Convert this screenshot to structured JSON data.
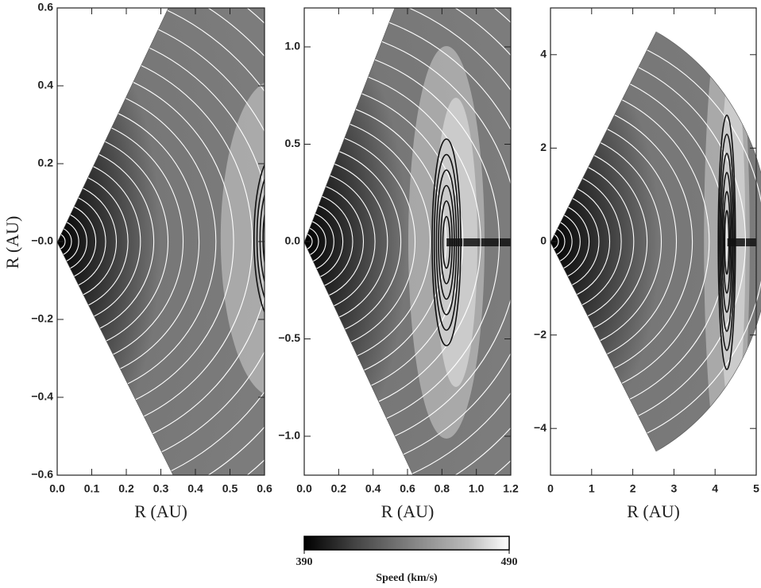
{
  "chart_data": [
    {
      "type": "contour",
      "xlabel": "R (AU)",
      "ylabel": "R (AU)",
      "xlim": [
        0,
        0.6
      ],
      "ylim": [
        -0.6,
        0.6
      ],
      "xticks": [
        {
          "value": 0,
          "label": "0.0"
        },
        0.1,
        0.2,
        0.3,
        0.4,
        0.5,
        0.6
      ],
      "yticks": [
        {
          "value": -0.6,
          "label": "−0.6"
        },
        {
          "value": -0.4,
          "label": "−0.4"
        },
        {
          "value": -0.2,
          "label": "−0.2"
        },
        {
          "value": 0,
          "label": "−0.0"
        },
        0.2,
        0.4,
        0.6
      ]
    },
    {
      "type": "contour",
      "xlabel": "R (AU)",
      "xlim": [
        0,
        1.2
      ],
      "ylim": [
        -1.2,
        1.2
      ],
      "xticks": [
        {
          "value": 0,
          "label": "0.0"
        },
        0.2,
        0.4,
        0.6,
        0.8,
        {
          "value": 1,
          "label": "1.0"
        },
        1.2
      ],
      "yticks": [
        {
          "value": -1,
          "label": "−1.0"
        },
        {
          "value": -0.5,
          "label": "−0.5"
        },
        {
          "value": 0,
          "label": "0.0"
        },
        0.5,
        {
          "value": 1,
          "label": "1.0"
        }
      ]
    },
    {
      "type": "contour",
      "xlabel": "R (AU)",
      "xlim": [
        0,
        5
      ],
      "ylim": [
        -5,
        5
      ],
      "xticks": [
        0,
        1,
        2,
        3,
        4,
        5
      ],
      "yticks": [
        {
          "value": -4,
          "label": "−4"
        },
        {
          "value": -2,
          "label": "−2"
        },
        0,
        2,
        4
      ]
    }
  ],
  "colorbar": {
    "label": "Speed (km/s)",
    "lim": [
      390,
      490
    ],
    "ticks": [
      390,
      490
    ]
  }
}
